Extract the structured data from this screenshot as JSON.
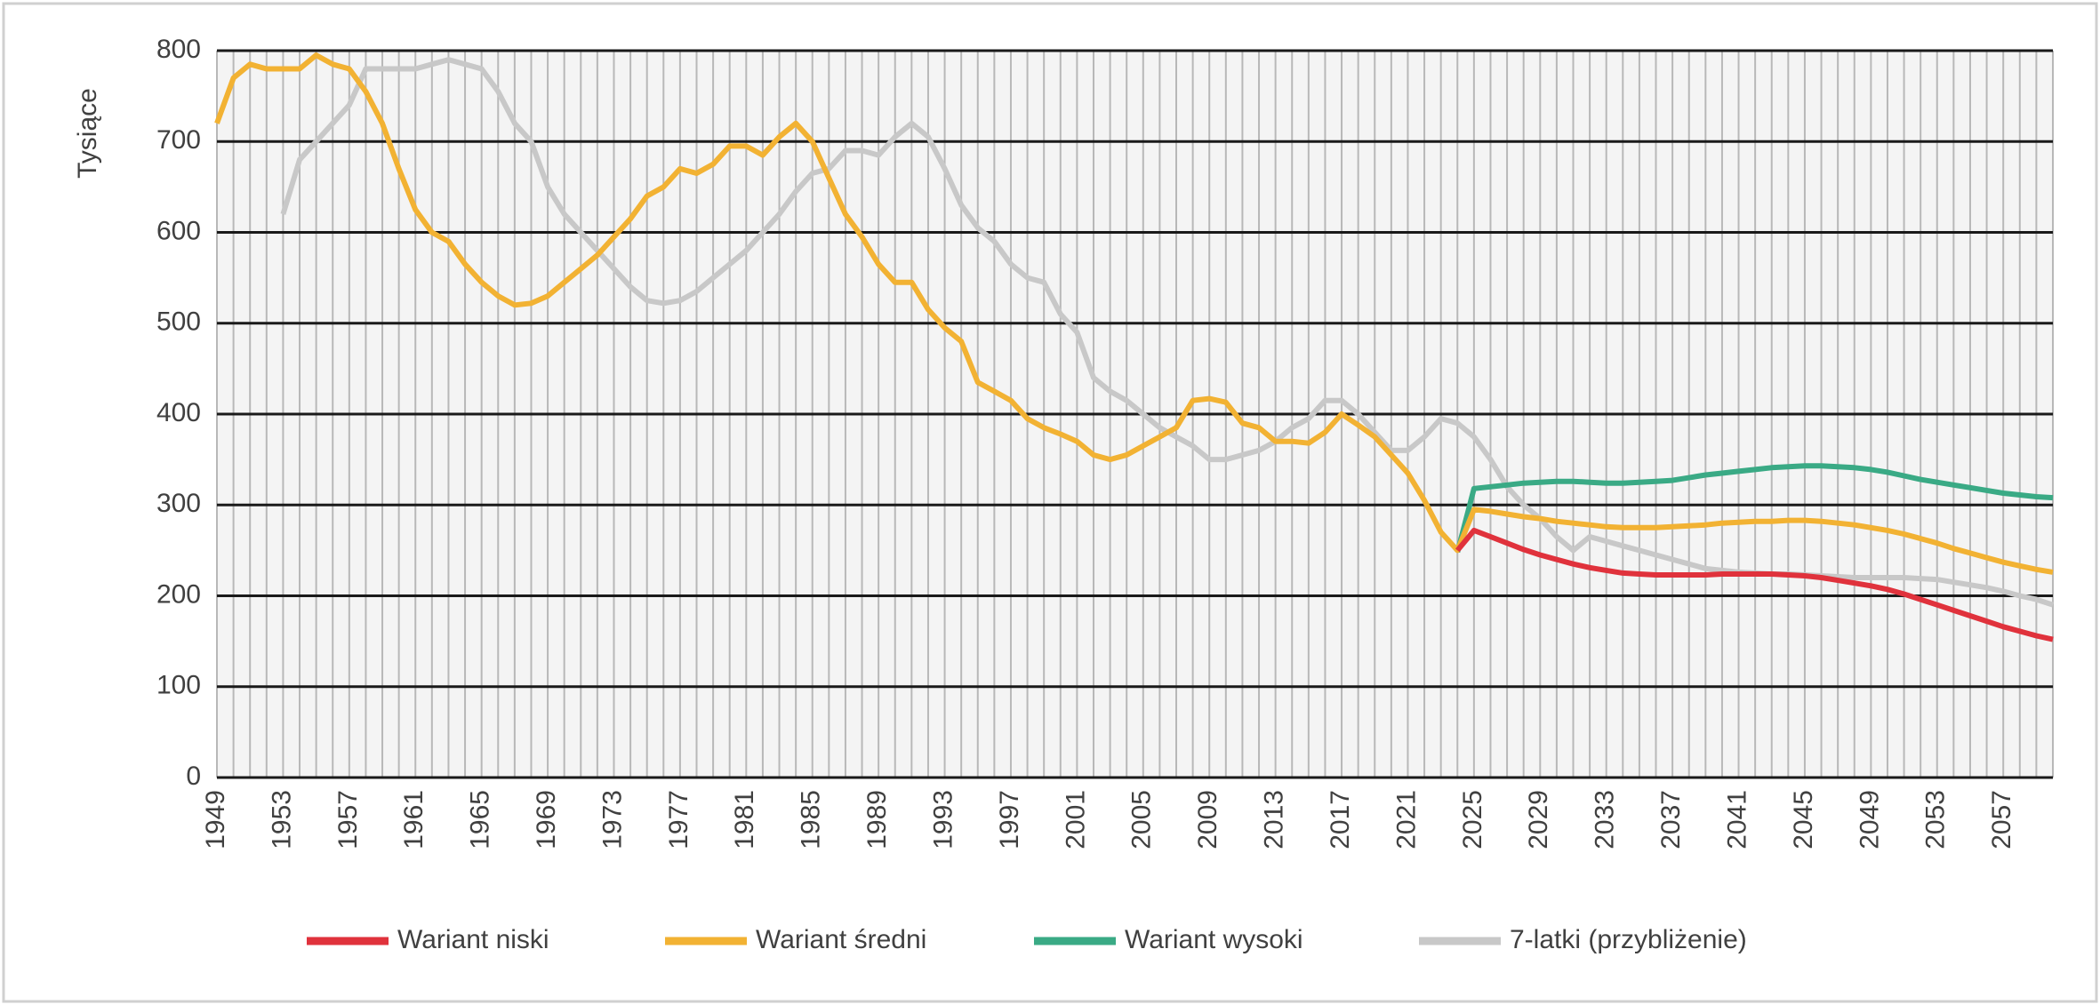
{
  "chart_data": {
    "type": "line",
    "y_label": "Tysiące",
    "x": [
      1949,
      1950,
      1951,
      1952,
      1953,
      1954,
      1955,
      1956,
      1957,
      1958,
      1959,
      1960,
      1961,
      1962,
      1963,
      1964,
      1965,
      1966,
      1967,
      1968,
      1969,
      1970,
      1971,
      1972,
      1973,
      1974,
      1975,
      1976,
      1977,
      1978,
      1979,
      1980,
      1981,
      1982,
      1983,
      1984,
      1985,
      1986,
      1987,
      1988,
      1989,
      1990,
      1991,
      1992,
      1993,
      1994,
      1995,
      1996,
      1997,
      1998,
      1999,
      2000,
      2001,
      2002,
      2003,
      2004,
      2005,
      2006,
      2007,
      2008,
      2009,
      2010,
      2011,
      2012,
      2013,
      2014,
      2015,
      2016,
      2017,
      2018,
      2019,
      2020,
      2021,
      2022,
      2023,
      2024,
      2025,
      2026,
      2027,
      2028,
      2029,
      2030,
      2031,
      2032,
      2033,
      2034,
      2035,
      2036,
      2037,
      2038,
      2039,
      2040,
      2041,
      2042,
      2043,
      2044,
      2045,
      2046,
      2047,
      2048,
      2049,
      2050,
      2051,
      2052,
      2053,
      2054,
      2055,
      2056,
      2057,
      2058,
      2059,
      2060
    ],
    "series": [
      {
        "name": "Wariant niski",
        "color": "#e0323c",
        "values": [
          null,
          null,
          null,
          null,
          null,
          null,
          null,
          null,
          null,
          null,
          null,
          null,
          null,
          null,
          null,
          null,
          null,
          null,
          null,
          null,
          null,
          null,
          null,
          null,
          null,
          null,
          null,
          null,
          null,
          null,
          null,
          null,
          null,
          null,
          null,
          null,
          null,
          null,
          null,
          null,
          null,
          null,
          null,
          null,
          null,
          null,
          null,
          null,
          null,
          null,
          null,
          null,
          null,
          null,
          null,
          null,
          null,
          null,
          null,
          null,
          null,
          null,
          null,
          null,
          null,
          null,
          null,
          null,
          null,
          null,
          null,
          null,
          null,
          null,
          null,
          250,
          272,
          265,
          258,
          251,
          245,
          240,
          235,
          231,
          228,
          225,
          224,
          223,
          223,
          223,
          223,
          224,
          224,
          224,
          224,
          223,
          222,
          220,
          217,
          214,
          211,
          207,
          202,
          196,
          190,
          184,
          178,
          172,
          166,
          161,
          156,
          152
        ]
      },
      {
        "name": "Wariant średni",
        "color": "#f2b233",
        "values": [
          720,
          770,
          785,
          780,
          780,
          780,
          795,
          785,
          780,
          755,
          720,
          670,
          625,
          600,
          590,
          565,
          545,
          530,
          520,
          522,
          530,
          545,
          560,
          575,
          595,
          615,
          640,
          650,
          670,
          665,
          675,
          695,
          695,
          685,
          705,
          720,
          700,
          660,
          620,
          595,
          565,
          545,
          545,
          515,
          495,
          480,
          435,
          425,
          415,
          395,
          385,
          378,
          370,
          355,
          350,
          355,
          365,
          375,
          385,
          415,
          417,
          413,
          390,
          385,
          370,
          370,
          368,
          380,
          400,
          388,
          375,
          355,
          335,
          305,
          270,
          250,
          295,
          293,
          290,
          287,
          285,
          282,
          280,
          278,
          276,
          275,
          275,
          275,
          276,
          277,
          278,
          280,
          281,
          282,
          282,
          283,
          283,
          282,
          280,
          278,
          275,
          272,
          268,
          263,
          258,
          252,
          247,
          242,
          237,
          233,
          229,
          226
        ]
      },
      {
        "name": "Wariant wysoki",
        "color": "#3aaa85",
        "values": [
          null,
          null,
          null,
          null,
          null,
          null,
          null,
          null,
          null,
          null,
          null,
          null,
          null,
          null,
          null,
          null,
          null,
          null,
          null,
          null,
          null,
          null,
          null,
          null,
          null,
          null,
          null,
          null,
          null,
          null,
          null,
          null,
          null,
          null,
          null,
          null,
          null,
          null,
          null,
          null,
          null,
          null,
          null,
          null,
          null,
          null,
          null,
          null,
          null,
          null,
          null,
          null,
          null,
          null,
          null,
          null,
          null,
          null,
          null,
          null,
          null,
          null,
          null,
          null,
          null,
          null,
          null,
          null,
          null,
          null,
          null,
          null,
          null,
          null,
          null,
          248,
          318,
          320,
          322,
          324,
          325,
          326,
          326,
          325,
          324,
          324,
          325,
          326,
          327,
          330,
          333,
          335,
          337,
          339,
          341,
          342,
          343,
          343,
          342,
          341,
          339,
          336,
          332,
          328,
          325,
          322,
          319,
          316,
          313,
          311,
          309,
          308
        ]
      },
      {
        "name": "7-latki (przybliżenie)",
        "color": "#c8c8c8",
        "values": [
          null,
          null,
          null,
          null,
          620,
          680,
          700,
          720,
          740,
          780,
          780,
          780,
          780,
          785,
          790,
          785,
          780,
          755,
          720,
          700,
          650,
          620,
          600,
          580,
          560,
          540,
          525,
          522,
          525,
          535,
          550,
          565,
          580,
          600,
          620,
          645,
          665,
          670,
          690,
          690,
          685,
          705,
          720,
          705,
          670,
          630,
          605,
          590,
          565,
          550,
          545,
          510,
          490,
          440,
          425,
          415,
          400,
          385,
          375,
          365,
          350,
          350,
          355,
          360,
          370,
          385,
          395,
          415,
          415,
          400,
          380,
          360,
          360,
          375,
          395,
          390,
          375,
          350,
          320,
          300,
          285,
          265,
          250,
          265,
          260,
          255,
          250,
          245,
          240,
          235,
          230,
          228,
          226,
          225,
          224,
          224,
          223,
          222,
          221,
          220,
          220,
          220,
          220,
          219,
          218,
          215,
          212,
          209,
          205,
          200,
          196,
          190
        ]
      }
    ],
    "xlim": [
      1949,
      2060
    ],
    "xticks": [
      1949,
      1953,
      1957,
      1961,
      1965,
      1969,
      1973,
      1977,
      1981,
      1985,
      1989,
      1993,
      1997,
      2001,
      2005,
      2009,
      2013,
      2017,
      2021,
      2025,
      2029,
      2033,
      2037,
      2041,
      2045,
      2049,
      2053,
      2057
    ],
    "ylim": [
      0,
      800
    ],
    "yticks": [
      0,
      100,
      200,
      300,
      400,
      500,
      600,
      700,
      800
    ],
    "grid": true,
    "legend": "bottom"
  }
}
